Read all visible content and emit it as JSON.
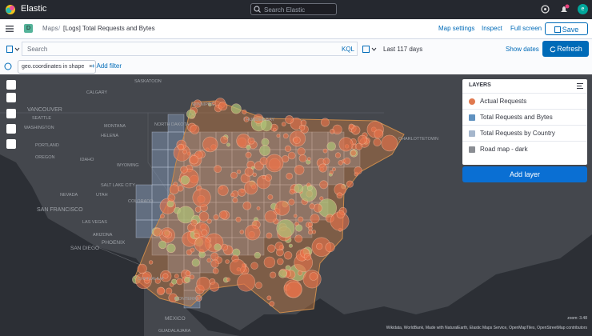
{
  "header": {
    "brand": "Elastic",
    "search_placeholder": "Search Elastic",
    "avatar": "e"
  },
  "toolbar": {
    "app_badge": "D",
    "breadcrumbs": [
      "Maps",
      "[Logs] Total Requests and Bytes"
    ],
    "links": [
      "Map settings",
      "Inspect",
      "Full screen"
    ],
    "save": "Save"
  },
  "query": {
    "placeholder": "Search",
    "language": "KQL",
    "time_range": "Last 117 days",
    "show_dates": "Show dates",
    "refresh": "Refresh"
  },
  "filters": {
    "pills": [
      "geo.coordinates in shape"
    ],
    "add_filter": "+ Add filter"
  },
  "layers": {
    "title": "LAYERS",
    "items": [
      {
        "name": "Actual Requests",
        "color": "#e0794f",
        "shape": "circle"
      },
      {
        "name": "Total Requests and Bytes",
        "color": "#6092c0",
        "shape": "square"
      },
      {
        "name": "Total Requests by Country",
        "color": "#a5b6cc",
        "shape": "square"
      },
      {
        "name": "Road map - dark",
        "color": "#8a8d93",
        "shape": "square"
      }
    ],
    "add_layer": "Add layer"
  },
  "map": {
    "labels": [
      "SASKATOON",
      "CALGARY",
      "WINNIPEG",
      "VANCOUVER",
      "SEATTLE",
      "WASHINGTON",
      "MONTANA",
      "HELENA",
      "NORTH DAKOTA",
      "THUNDER BAY",
      "PORTLAND",
      "OREGON",
      "IDAHO",
      "WYOMING",
      "NEVADA",
      "UTAH",
      "SALT LAKE CITY",
      "COLORADO",
      "SAN FRANCISCO",
      "LAS VEGAS",
      "ARIZONA",
      "PHOENIX",
      "SAN DIEGO",
      "CHIHUAHUA",
      "MONTERREY",
      "MEXICO",
      "GUADALAJARA",
      "CHARLOTTETOWN"
    ],
    "zoom": "zoom: 3.48",
    "attribution": "Wikidata, WorldBank, Made with NaturalEarth, Elastic Maps Service, OpenMapTiles, OpenStreetMap contributors"
  }
}
